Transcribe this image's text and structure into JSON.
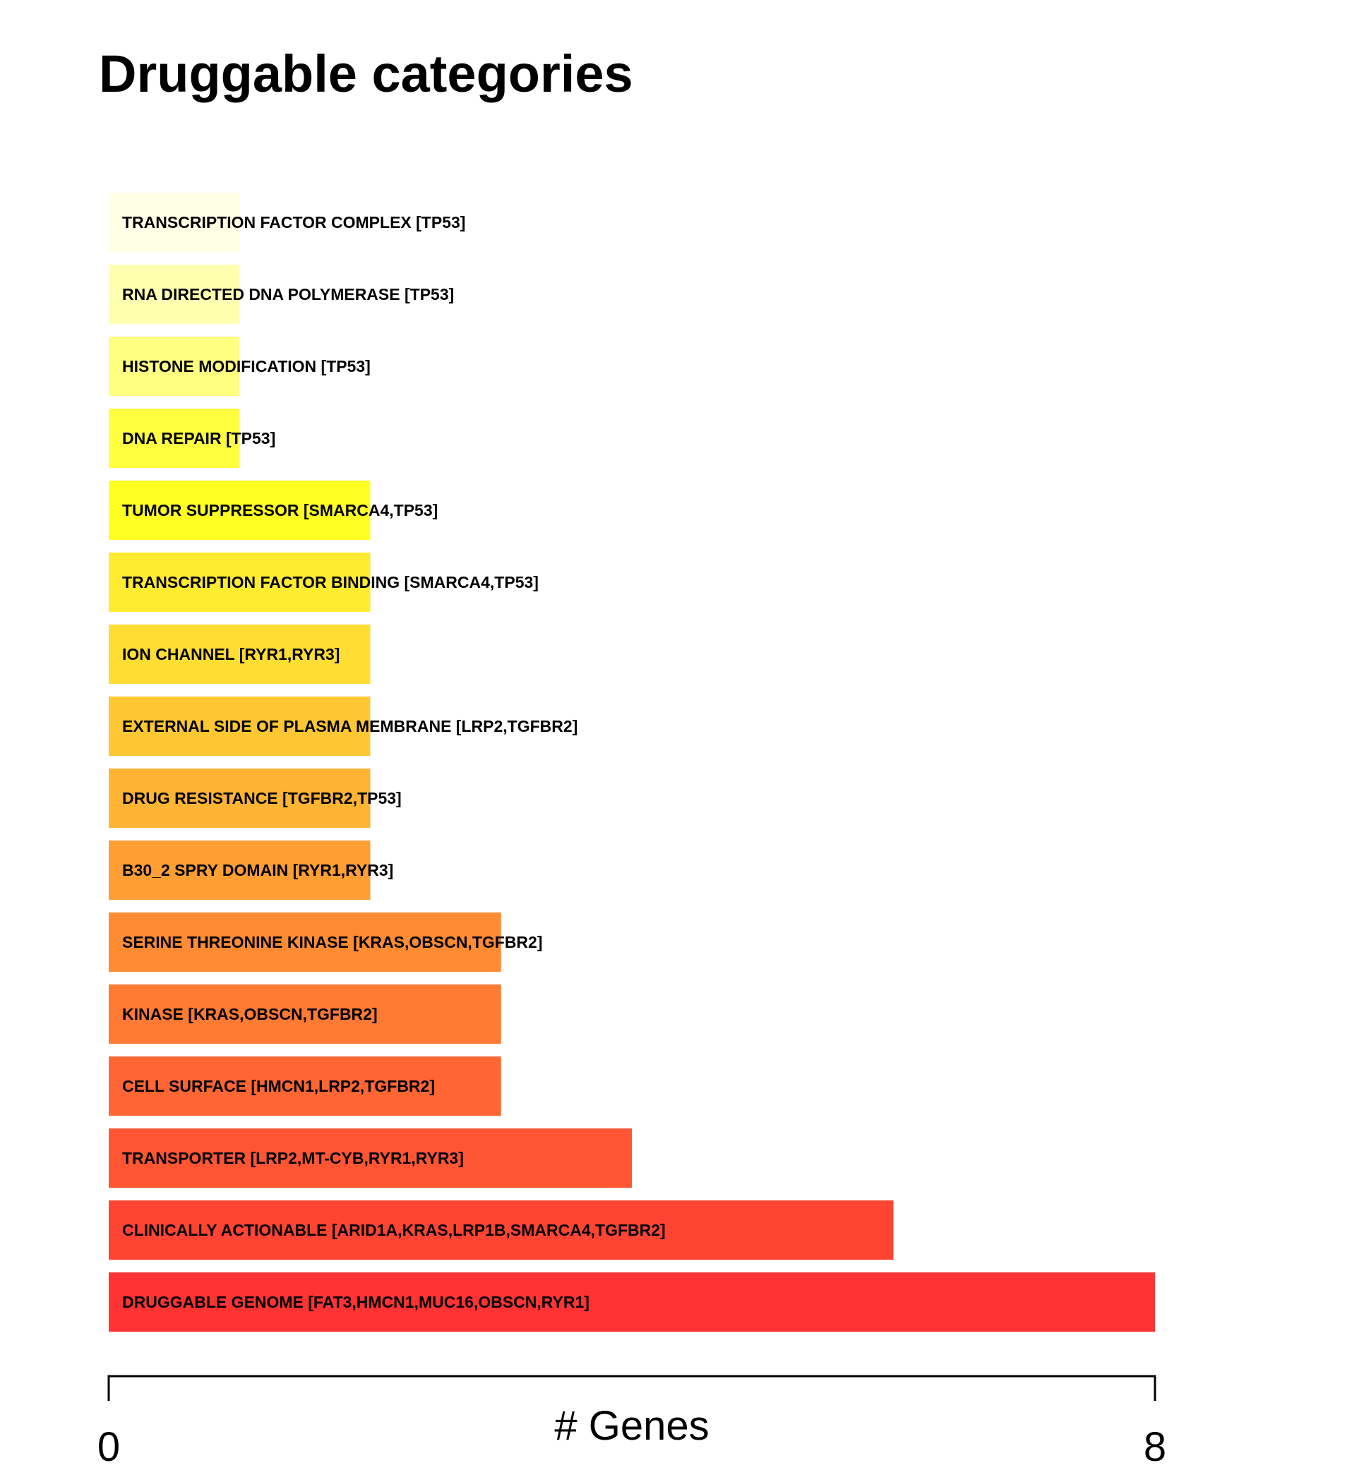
{
  "chart_data": {
    "type": "bar",
    "orientation": "horizontal",
    "title": "Druggable categories",
    "xlabel": "# Genes",
    "xlim": [
      0,
      8
    ],
    "x_tick_labels": [
      "0",
      "8"
    ],
    "grid": false,
    "categories": [
      "TRANSCRIPTION FACTOR COMPLEX [TP53]",
      "RNA DIRECTED DNA POLYMERASE [TP53]",
      "HISTONE MODIFICATION [TP53]",
      "DNA REPAIR [TP53]",
      "TUMOR SUPPRESSOR [SMARCA4,TP53]",
      "TRANSCRIPTION FACTOR BINDING [SMARCA4,TP53]",
      "ION CHANNEL [RYR1,RYR3]",
      "EXTERNAL SIDE OF PLASMA MEMBRANE [LRP2,TGFBR2]",
      "DRUG RESISTANCE [TGFBR2,TP53]",
      "B30_2 SPRY DOMAIN [RYR1,RYR3]",
      "SERINE THREONINE KINASE [KRAS,OBSCN,TGFBR2]",
      "KINASE [KRAS,OBSCN,TGFBR2]",
      "CELL SURFACE [HMCN1,LRP2,TGFBR2]",
      "TRANSPORTER [LRP2,MT-CYB,RYR1,RYR3]",
      "CLINICALLY ACTIONABLE [ARID1A,KRAS,LRP1B,SMARCA4,TGFBR2]",
      "DRUGGABLE GENOME [FAT3,HMCN1,MUC16,OBSCN,RYR1]"
    ],
    "values": [
      1,
      1,
      1,
      1,
      2,
      2,
      2,
      2,
      2,
      2,
      3,
      3,
      3,
      4,
      6,
      8
    ],
    "colors": [
      "#ffffe6",
      "#ffffb0",
      "#ffff80",
      "#ffff40",
      "#ffff22",
      "#ffeb30",
      "#ffdd33",
      "#ffc733",
      "#ffb433",
      "#ff9e33",
      "#ff8c33",
      "#ff7a33",
      "#ff6633",
      "#ff5533",
      "#ff4433",
      "#ff3333"
    ]
  }
}
